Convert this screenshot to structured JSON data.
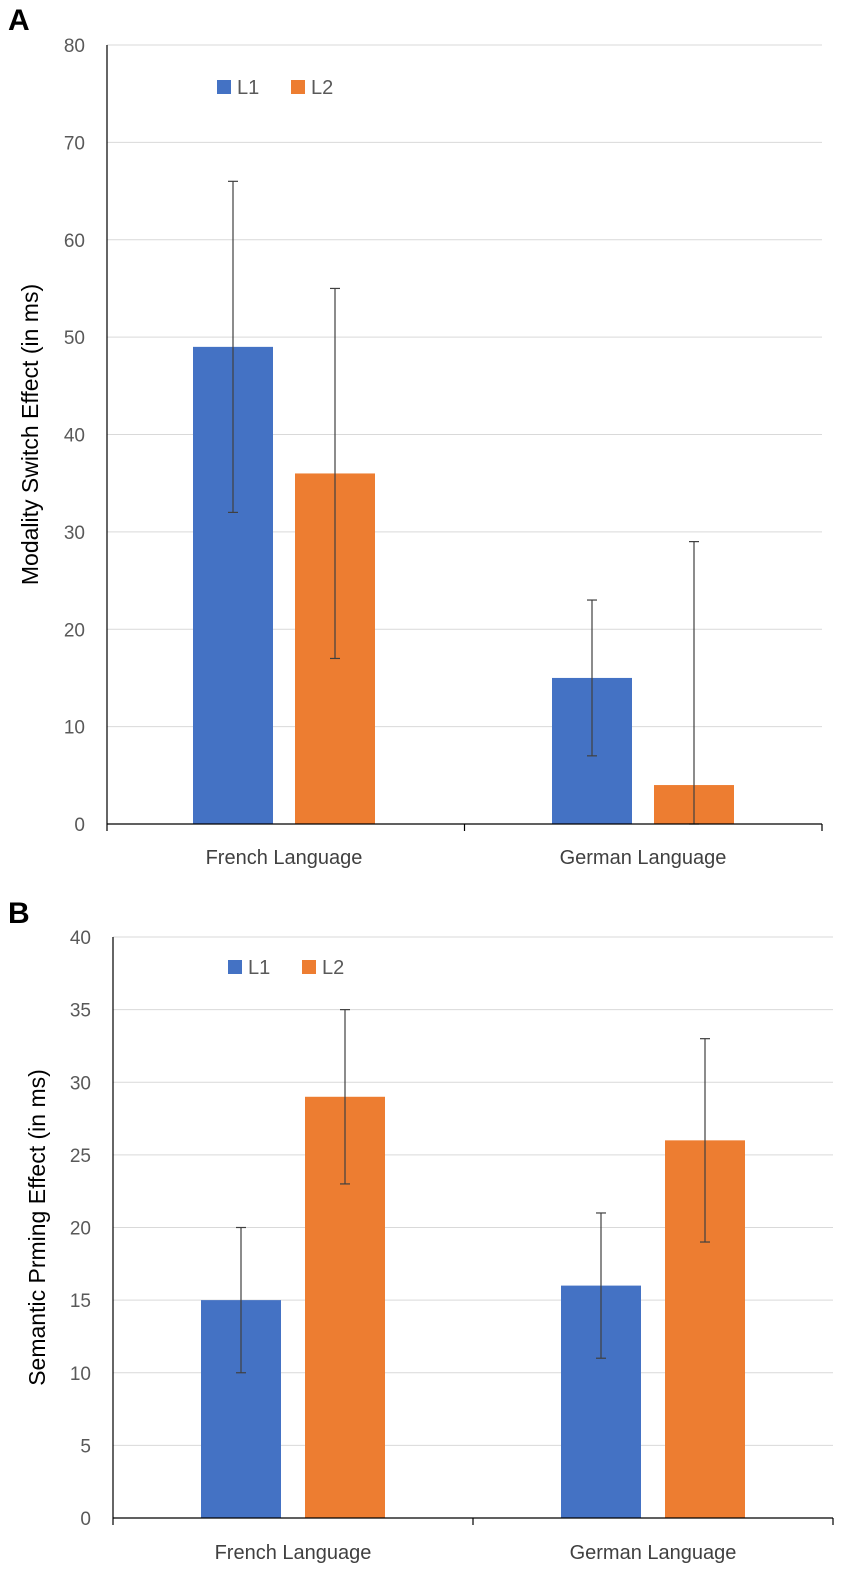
{
  "chart_data": [
    {
      "panel": "A",
      "type": "bar",
      "title": "",
      "xlabel": "",
      "ylabel": "Modality Switch Effect (in ms)",
      "ylim": [
        0,
        80
      ],
      "yticks": [
        0,
        10,
        20,
        30,
        40,
        50,
        60,
        70,
        80
      ],
      "grid": true,
      "legend_position": "top-left",
      "categories": [
        "French Language",
        "German Language"
      ],
      "series": [
        {
          "name": "L1",
          "color": "#4472C4",
          "values": [
            49,
            15
          ],
          "error_low": [
            32,
            7
          ],
          "error_high": [
            66,
            23
          ]
        },
        {
          "name": "L2",
          "color": "#ED7D31",
          "values": [
            36,
            4
          ],
          "error_low": [
            17,
            0
          ],
          "error_high": [
            55,
            29
          ]
        }
      ]
    },
    {
      "panel": "B",
      "type": "bar",
      "title": "",
      "xlabel": "",
      "ylabel": "Semantic Prming Effect (in ms)",
      "ylim": [
        0,
        40
      ],
      "yticks": [
        0,
        5,
        10,
        15,
        20,
        25,
        30,
        35,
        40
      ],
      "grid": true,
      "legend_position": "top-left",
      "categories": [
        "French Language",
        "German Language"
      ],
      "series": [
        {
          "name": "L1",
          "color": "#4472C4",
          "values": [
            15,
            16
          ],
          "error_low": [
            10,
            11
          ],
          "error_high": [
            20,
            21
          ]
        },
        {
          "name": "L2",
          "color": "#ED7D31",
          "values": [
            29,
            26
          ],
          "error_low": [
            23,
            19
          ],
          "error_high": [
            35,
            33
          ]
        }
      ]
    }
  ]
}
